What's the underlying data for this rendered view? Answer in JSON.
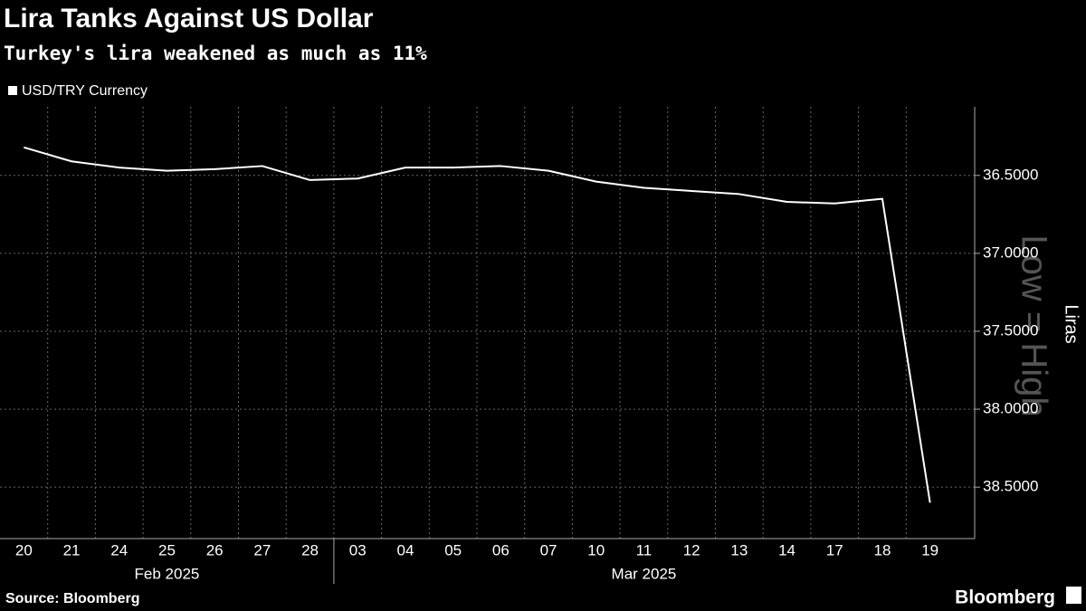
{
  "chart_data": {
    "type": "line",
    "title": "Lira Tanks Against US Dollar",
    "subtitle": "Turkey's lira weakened as much as 11%",
    "categories": [
      "20",
      "21",
      "24",
      "25",
      "26",
      "27",
      "28",
      "03",
      "04",
      "05",
      "06",
      "07",
      "10",
      "11",
      "12",
      "13",
      "14",
      "17",
      "18",
      "19"
    ],
    "category_groups": [
      {
        "label": "Feb 2025",
        "start": 0,
        "end": 6
      },
      {
        "label": "Mar 2025",
        "start": 7,
        "end": 19
      }
    ],
    "series": [
      {
        "name": "USD/TRY Currency",
        "color": "#ffffff",
        "values": [
          36.32,
          36.41,
          36.45,
          36.47,
          36.46,
          36.44,
          36.53,
          36.52,
          36.45,
          36.45,
          36.44,
          36.47,
          36.54,
          36.58,
          36.6,
          36.62,
          36.67,
          36.68,
          36.65,
          38.6
        ]
      }
    ],
    "ylim": [
      36.06,
      38.83
    ],
    "y_inverted": true,
    "yticks": [
      {
        "value": 36.5,
        "label": "36.5000"
      },
      {
        "value": 37.0,
        "label": "37.0000"
      },
      {
        "value": 37.5,
        "label": "37.5000"
      },
      {
        "value": 38.0,
        "label": "38.0000"
      },
      {
        "value": 38.5,
        "label": "38.5000"
      }
    ],
    "y_label": "Liras",
    "annotation": "Low = High",
    "grid": true,
    "source": "Source: Bloomberg",
    "brand": "Bloomberg"
  }
}
